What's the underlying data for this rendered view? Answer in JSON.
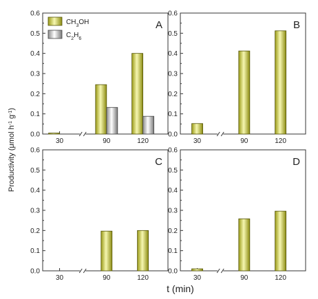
{
  "figure": {
    "ylabel_main": "Productivity (μmol h",
    "ylabel_sup1": "-1",
    "ylabel_mid": " g",
    "ylabel_sup2": "-1",
    "ylabel_end": ")",
    "xlabel": "t (min)"
  },
  "colors": {
    "ch3oh_light": "#f6f7b0",
    "ch3oh_dark": "#8c8c12",
    "c2h6_light": "#ffffff",
    "c2h6_dark": "#7a7a7a"
  },
  "chart_data": [
    {
      "type": "bar",
      "panel_label": "A",
      "categories": [
        "30",
        "90",
        "120"
      ],
      "axis_break_between": [
        "30",
        "90"
      ],
      "ylim": [
        0,
        0.6
      ],
      "yticks": [
        "0.0",
        "0.1",
        "0.2",
        "0.3",
        "0.4",
        "0.5",
        "0.6"
      ],
      "legend_position": "top-left",
      "series": [
        {
          "name": "CH3OH",
          "name_main": "CH",
          "name_sub1": "3",
          "name_tail": "OH",
          "values": [
            0.005,
            0.245,
            0.4
          ]
        },
        {
          "name": "C2H6",
          "name_main": "C",
          "name_sub1": "2",
          "name_mid": "H",
          "name_sub2": "6",
          "values": [
            0,
            0.132,
            0.088
          ]
        }
      ]
    },
    {
      "type": "bar",
      "panel_label": "B",
      "categories": [
        "30",
        "90",
        "120"
      ],
      "axis_break_between": [
        "30",
        "90"
      ],
      "ylim": [
        0,
        0.6
      ],
      "yticks": [
        "0.0",
        "0.1",
        "0.2",
        "0.3",
        "0.4",
        "0.5",
        "0.6"
      ],
      "series": [
        {
          "values": [
            0.052,
            0.412,
            0.512
          ]
        }
      ]
    },
    {
      "type": "bar",
      "panel_label": "C",
      "categories": [
        "30",
        "90",
        "120"
      ],
      "axis_break_between": [
        "30",
        "90"
      ],
      "ylim": [
        0,
        0.6
      ],
      "yticks": [
        "0.0",
        "0.1",
        "0.2",
        "0.3",
        "0.4",
        "0.5",
        "0.6"
      ],
      "series": [
        {
          "values": [
            0,
            0.197,
            0.2
          ]
        }
      ]
    },
    {
      "type": "bar",
      "panel_label": "D",
      "categories": [
        "30",
        "90",
        "120"
      ],
      "axis_break_between": [
        "30",
        "90"
      ],
      "ylim": [
        0,
        0.6
      ],
      "yticks": [
        "0.0",
        "0.1",
        "0.2",
        "0.3",
        "0.4",
        "0.5",
        "0.6"
      ],
      "series": [
        {
          "values": [
            0.01,
            0.258,
            0.296
          ]
        }
      ]
    }
  ]
}
